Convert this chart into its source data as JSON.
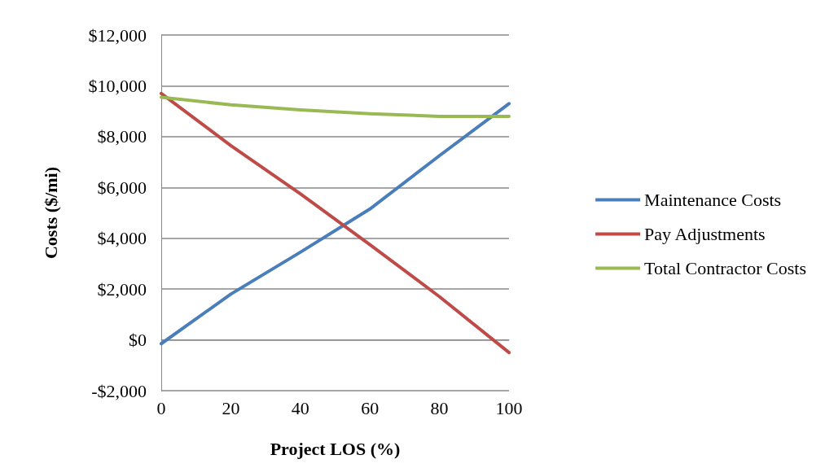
{
  "chart_data": {
    "type": "line",
    "xlabel": "Project LOS (%)",
    "ylabel": "Costs ($/mi)",
    "x": [
      0,
      20,
      40,
      60,
      80,
      100
    ],
    "series": [
      {
        "name": "Maintenance Costs",
        "color": "#4a7ebb",
        "values": [
          -150,
          1800,
          3450,
          5150,
          7250,
          9300
        ]
      },
      {
        "name": "Pay Adjustments",
        "color": "#be4b48",
        "values": [
          9700,
          7650,
          5750,
          3750,
          1700,
          -500
        ]
      },
      {
        "name": "Total Contractor Costs",
        "color": "#98b954",
        "values": [
          9550,
          9250,
          9050,
          8900,
          8800,
          8800
        ]
      }
    ],
    "xlim": [
      0,
      100
    ],
    "xticks": [
      0,
      20,
      40,
      60,
      80,
      100
    ],
    "ylim": [
      -2000,
      12000
    ],
    "yticks": [
      {
        "value": -2000,
        "label": "-$2,000"
      },
      {
        "value": 0,
        "label": "$0"
      },
      {
        "value": 2000,
        "label": "$2,000"
      },
      {
        "value": 4000,
        "label": "$4,000"
      },
      {
        "value": 6000,
        "label": "$6,000"
      },
      {
        "value": 8000,
        "label": "$8,000"
      },
      {
        "value": 10000,
        "label": "$10,000"
      },
      {
        "value": 12000,
        "label": "$12,000"
      }
    ],
    "grid": "y",
    "legend": "right",
    "marker": "none",
    "line_style": "solid"
  }
}
